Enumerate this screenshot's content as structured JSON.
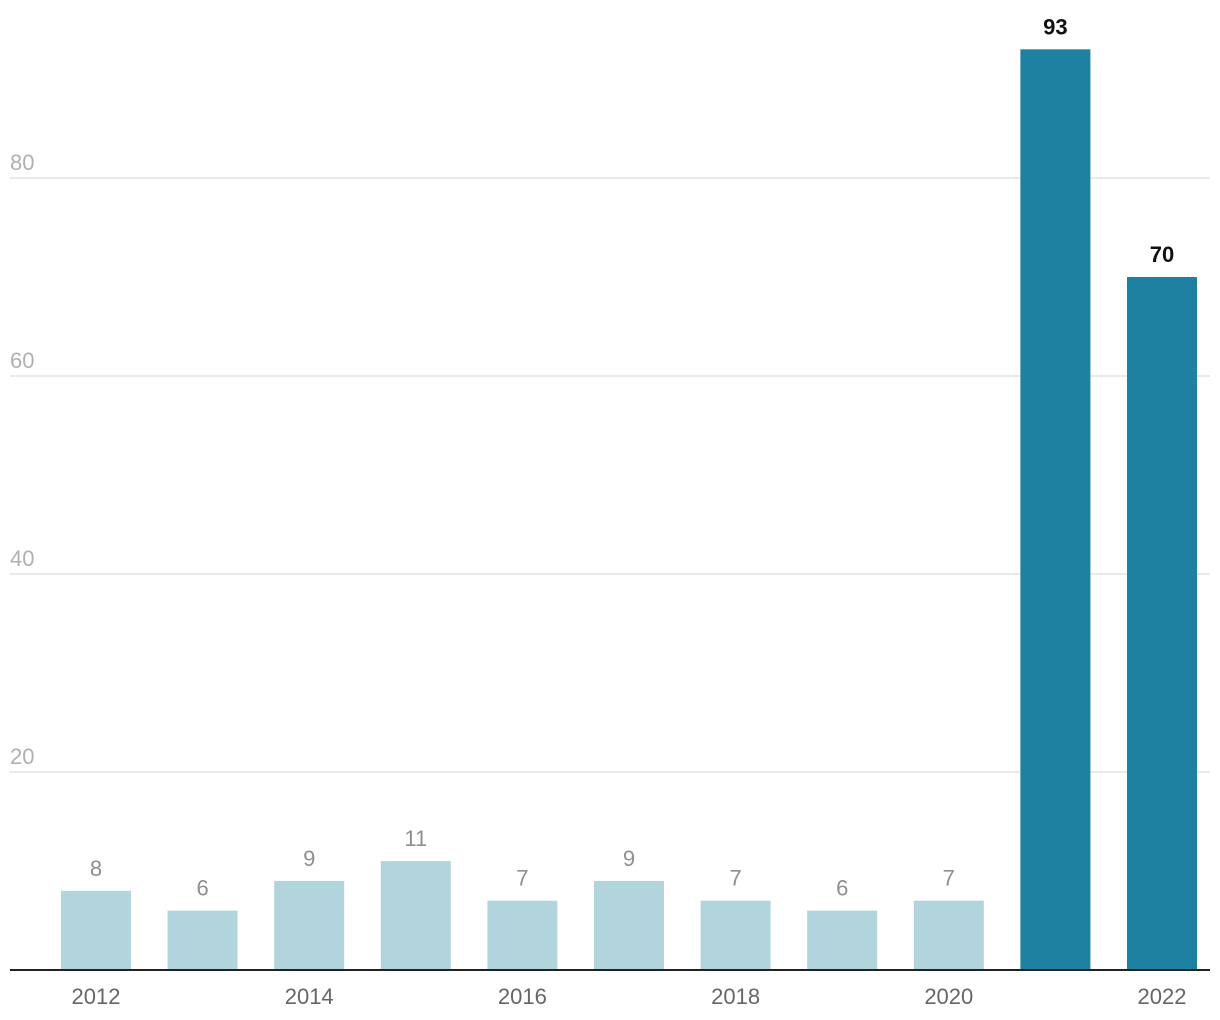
{
  "chart_data": {
    "type": "bar",
    "title": "",
    "xlabel": "",
    "ylabel": "",
    "categories": [
      "2012",
      "2013",
      "2014",
      "2015",
      "2016",
      "2017",
      "2018",
      "2019",
      "2020",
      "2021",
      "2022"
    ],
    "values": [
      8,
      6,
      9,
      11,
      7,
      9,
      7,
      6,
      7,
      93,
      70
    ],
    "highlighted": [
      false,
      false,
      false,
      false,
      false,
      false,
      false,
      false,
      false,
      true,
      true
    ],
    "x_tick_labels": [
      "2012",
      "2014",
      "2016",
      "2018",
      "2020",
      "2022"
    ],
    "y_ticks": [
      20,
      40,
      60,
      80
    ],
    "ylim": [
      0,
      93
    ],
    "grid": true,
    "legend": "none",
    "colors": {
      "normal_bar": "#b1d4dd",
      "highlight_bar": "#1e81a1",
      "grid": "#e2e2e2",
      "baseline": "#222222"
    }
  }
}
